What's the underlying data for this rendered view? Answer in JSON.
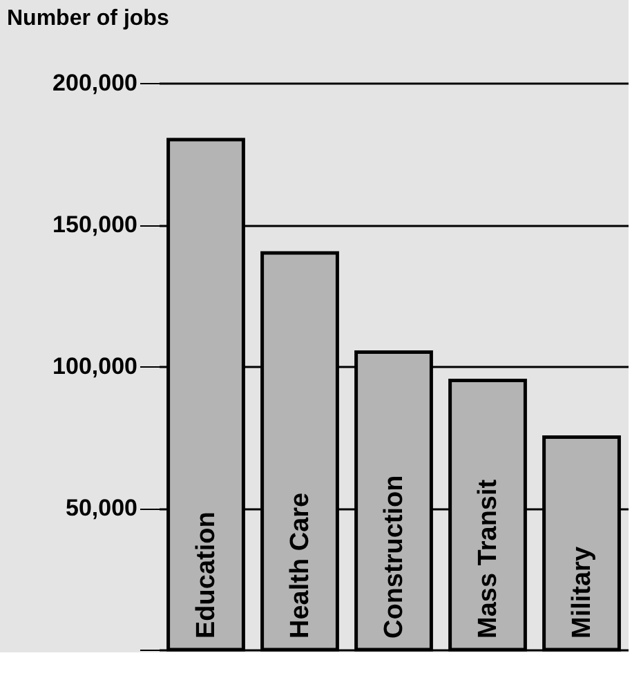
{
  "chart_data": {
    "type": "bar",
    "title": "Number of jobs",
    "categories": [
      "Education",
      "Health Care",
      "Construction",
      "Mass Transit",
      "Military"
    ],
    "values": [
      180000,
      140000,
      105000,
      95000,
      75000
    ],
    "color": "#b4b4b4",
    "ylim": [
      0,
      200000
    ],
    "yticks": [
      {
        "value": 0,
        "label": null
      },
      {
        "value": 50000,
        "label": "50,000"
      },
      {
        "value": 100000,
        "label": "100,000"
      },
      {
        "value": 150000,
        "label": "150,000"
      },
      {
        "value": 200000,
        "label": "200,000"
      }
    ],
    "grid": "y"
  }
}
